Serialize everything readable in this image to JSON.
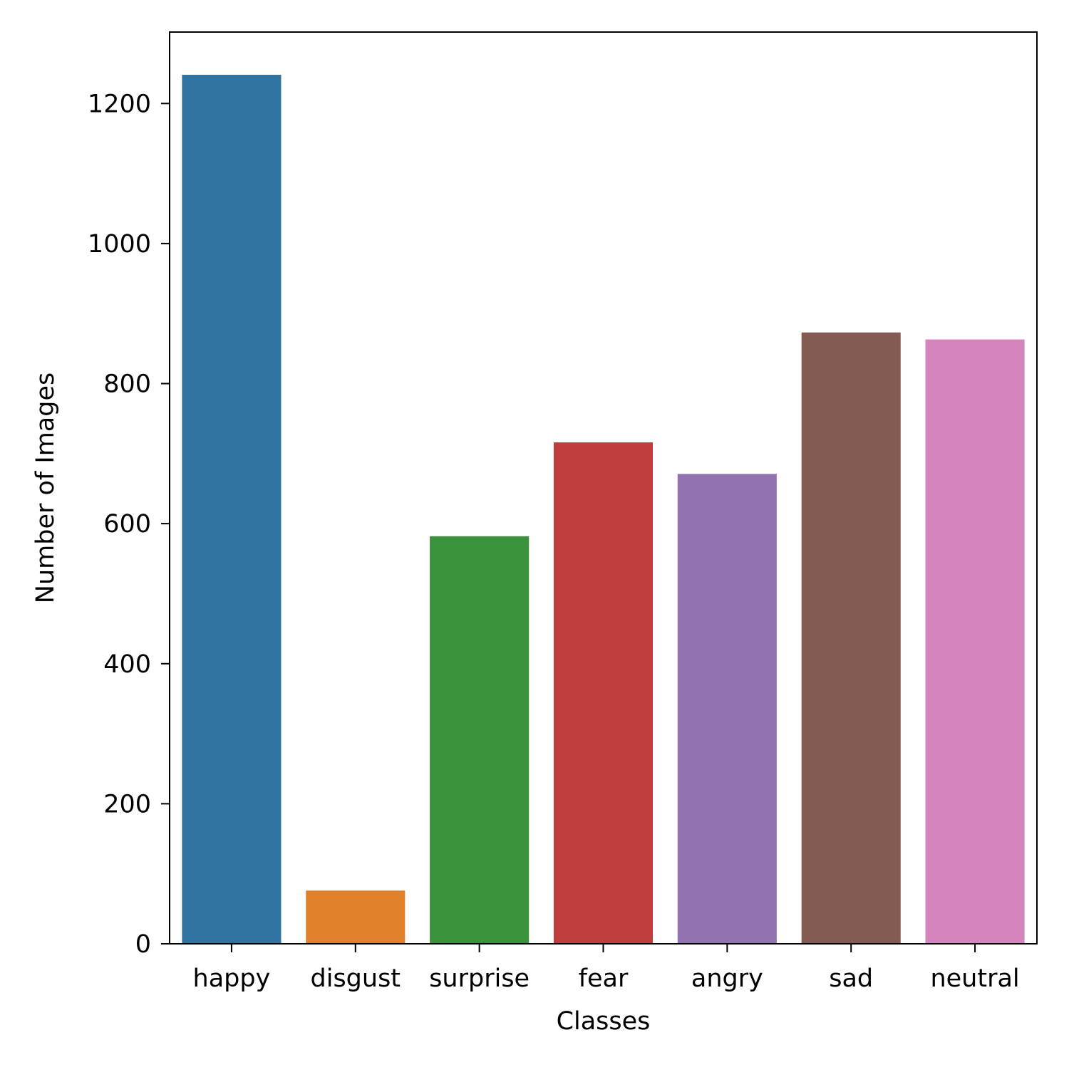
{
  "chart_data": {
    "type": "bar",
    "title": "",
    "xlabel": "Classes",
    "ylabel": "Number of Images",
    "categories": [
      "happy",
      "disgust",
      "surprise",
      "fear",
      "angry",
      "sad",
      "neutral"
    ],
    "values": [
      1241,
      76,
      582,
      716,
      671,
      873,
      863
    ],
    "colors": [
      "#3274a1",
      "#e1812c",
      "#3a923a",
      "#c03d3e",
      "#9372b2",
      "#845b53",
      "#d684bd"
    ],
    "ylim": [
      0,
      1302
    ],
    "yticks": [
      0,
      200,
      400,
      600,
      800,
      1000,
      1200
    ],
    "grid": false,
    "legend": "none"
  }
}
